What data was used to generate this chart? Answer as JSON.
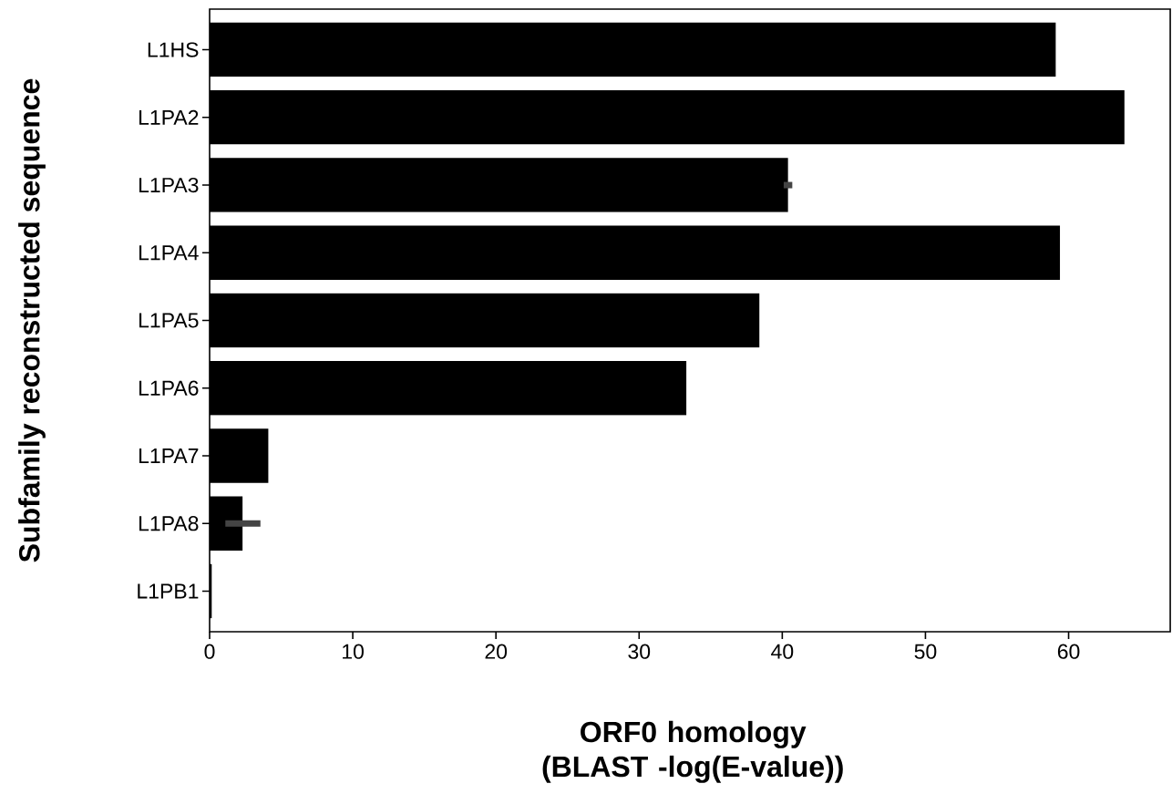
{
  "chart_data": {
    "type": "bar",
    "orientation": "horizontal",
    "categories": [
      "L1HS",
      "L1PA2",
      "L1PA3",
      "L1PA4",
      "L1PA5",
      "L1PA6",
      "L1PA7",
      "L1PA8",
      "L1PB1"
    ],
    "values": [
      59.1,
      63.9,
      40.4,
      59.4,
      38.4,
      33.3,
      4.1,
      2.3,
      0.15
    ],
    "errors": [
      null,
      null,
      [
        40.1,
        40.7
      ],
      null,
      null,
      null,
      null,
      [
        1.1,
        3.55
      ],
      null
    ],
    "color": "#000000",
    "xlim": [
      0,
      67.1
    ],
    "xticks": [
      0,
      10,
      20,
      30,
      40,
      50,
      60
    ],
    "xlabel": "ORF0 homology (BLAST -log(E-value))",
    "ylabel": "Subfamily reconstructed sequence"
  }
}
